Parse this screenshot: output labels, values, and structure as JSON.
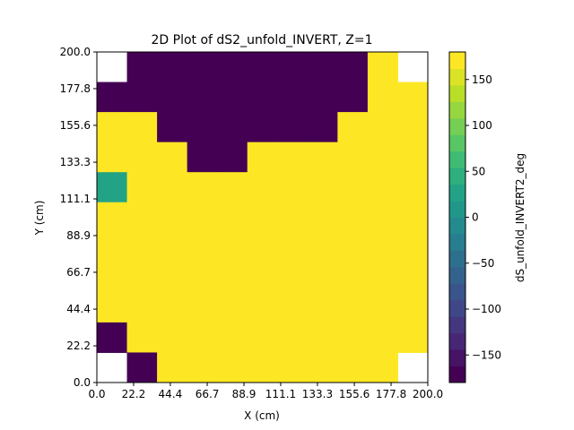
{
  "chart_data": {
    "type": "heatmap",
    "title": "2D Plot of dS2_unfold_INVERT, Z=1",
    "xlabel": "X (cm)",
    "ylabel": "Y (cm)",
    "colorbar_label": "dS_unfold_INVERT2_deg",
    "x_ticks": [
      "0.0",
      "22.2",
      "44.4",
      "66.7",
      "88.9",
      "111.1",
      "133.3",
      "155.6",
      "177.8",
      "200.0"
    ],
    "y_ticks": [
      "0.0",
      "22.2",
      "44.4",
      "66.7",
      "88.9",
      "111.1",
      "133.3",
      "155.6",
      "177.8",
      "200.0"
    ],
    "xlim": [
      0,
      200
    ],
    "ylim": [
      0,
      200
    ],
    "colorbar_ticks": [
      "150",
      "100",
      "50",
      "0",
      "−50",
      "−100",
      "−150"
    ],
    "colorbar_tick_values": [
      150,
      100,
      50,
      0,
      -50,
      -100,
      -150
    ],
    "colorbar_range": [
      -180,
      180
    ],
    "colorbar_levels": 20,
    "colormap": "viridis",
    "grid": false,
    "grid_cols": 11,
    "grid_rows": 11,
    "values_top_to_bottom": [
      [
        null,
        -180,
        -180,
        -180,
        -180,
        -180,
        -180,
        -180,
        -180,
        178,
        null
      ],
      [
        -180,
        -180,
        -180,
        -180,
        -180,
        -180,
        -180,
        -180,
        -180,
        178,
        178
      ],
      [
        178,
        178,
        -180,
        -180,
        -180,
        -180,
        -180,
        -180,
        178,
        178,
        178
      ],
      [
        165,
        178,
        178,
        -180,
        -180,
        178,
        178,
        178,
        178,
        178,
        178
      ],
      [
        20,
        178,
        178,
        178,
        178,
        178,
        178,
        178,
        178,
        178,
        178
      ],
      [
        178,
        178,
        178,
        178,
        178,
        178,
        178,
        178,
        178,
        178,
        178
      ],
      [
        178,
        178,
        178,
        178,
        178,
        178,
        178,
        178,
        178,
        178,
        178
      ],
      [
        178,
        178,
        178,
        178,
        178,
        178,
        178,
        178,
        178,
        178,
        178
      ],
      [
        178,
        178,
        178,
        178,
        178,
        178,
        178,
        178,
        178,
        178,
        178
      ],
      [
        -180,
        178,
        178,
        178,
        178,
        178,
        178,
        178,
        178,
        178,
        178
      ],
      [
        null,
        -180,
        178,
        178,
        178,
        178,
        178,
        178,
        178,
        178,
        null
      ]
    ]
  }
}
